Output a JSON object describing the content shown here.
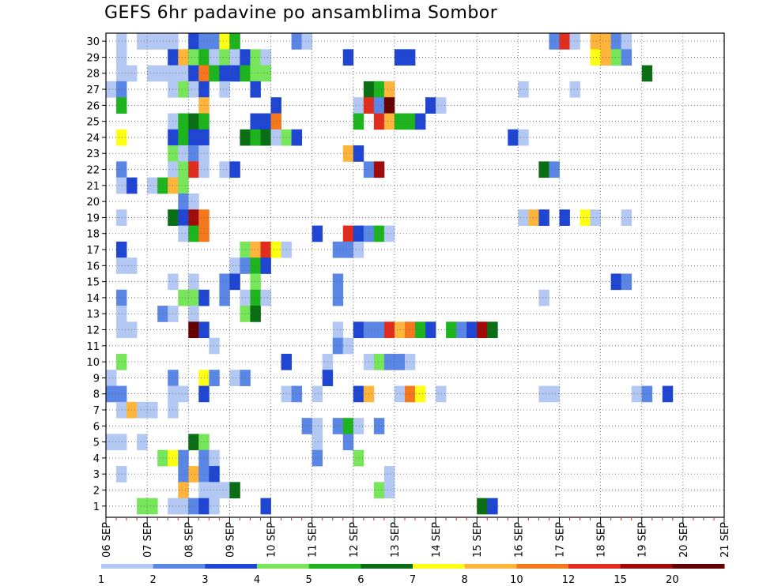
{
  "title": "GEFS 6hr padavine po ansamblima Sombor",
  "chart_data": {
    "type": "heatmap",
    "x_dates": [
      "06 SEP",
      "07 SEP",
      "08 SEP",
      "09 SEP",
      "10 SEP",
      "11 SEP",
      "12 SEP",
      "13 SEP",
      "14 SEP",
      "15 SEP",
      "16 SEP",
      "17 SEP",
      "18 SEP",
      "19 SEP",
      "20 SEP",
      "21 SEP"
    ],
    "x_steps_per_day": 4,
    "members": [
      1,
      2,
      3,
      4,
      5,
      6,
      7,
      8,
      9,
      10,
      11,
      12,
      13,
      14,
      15,
      16,
      17,
      18,
      19,
      20,
      21,
      22,
      23,
      24,
      25,
      26,
      27,
      28,
      29,
      30
    ],
    "grid": true,
    "legend_position": "bottom",
    "colorbar": {
      "tick_labels": [
        "1",
        "2",
        "3",
        "4",
        "5",
        "6",
        "7",
        "8",
        "10",
        "12",
        "15",
        "20"
      ],
      "colors": [
        "#b4c8f4",
        "#5a87e6",
        "#1e46d2",
        "#78e65a",
        "#1eb41e",
        "#0a6e14",
        "#ffff14",
        "#ffb43c",
        "#f5781e",
        "#e12d1e",
        "#a00a0a",
        "#640000"
      ]
    },
    "cells": [
      [
        30,
        1,
        0
      ],
      [
        30,
        3,
        0
      ],
      [
        30,
        4,
        0
      ],
      [
        30,
        5,
        0
      ],
      [
        30,
        6,
        0
      ],
      [
        30,
        8,
        2
      ],
      [
        30,
        9,
        1
      ],
      [
        30,
        10,
        1
      ],
      [
        30,
        11,
        6
      ],
      [
        30,
        12,
        4
      ],
      [
        30,
        18,
        1
      ],
      [
        30,
        19,
        0
      ],
      [
        30,
        43,
        1
      ],
      [
        30,
        44,
        9
      ],
      [
        30,
        45,
        0
      ],
      [
        30,
        47,
        7
      ],
      [
        30,
        48,
        7
      ],
      [
        30,
        49,
        1
      ],
      [
        30,
        50,
        0
      ],
      [
        29,
        1,
        0
      ],
      [
        29,
        6,
        2
      ],
      [
        29,
        7,
        7
      ],
      [
        29,
        8,
        3
      ],
      [
        29,
        9,
        4
      ],
      [
        29,
        10,
        0
      ],
      [
        29,
        11,
        3
      ],
      [
        29,
        12,
        0
      ],
      [
        29,
        13,
        2
      ],
      [
        29,
        14,
        3
      ],
      [
        29,
        15,
        0
      ],
      [
        29,
        23,
        2
      ],
      [
        29,
        28,
        2
      ],
      [
        29,
        29,
        2
      ],
      [
        29,
        47,
        6
      ],
      [
        29,
        48,
        7
      ],
      [
        29,
        49,
        3
      ],
      [
        29,
        50,
        1
      ],
      [
        28,
        1,
        0
      ],
      [
        28,
        2,
        0
      ],
      [
        28,
        4,
        0
      ],
      [
        28,
        5,
        0
      ],
      [
        28,
        6,
        0
      ],
      [
        28,
        7,
        0
      ],
      [
        28,
        8,
        2
      ],
      [
        28,
        9,
        8
      ],
      [
        28,
        10,
        4
      ],
      [
        28,
        11,
        2
      ],
      [
        28,
        12,
        2
      ],
      [
        28,
        13,
        4
      ],
      [
        28,
        14,
        3
      ],
      [
        28,
        15,
        3
      ],
      [
        28,
        52,
        5
      ],
      [
        27,
        0,
        0
      ],
      [
        27,
        1,
        1
      ],
      [
        27,
        6,
        0
      ],
      [
        27,
        7,
        3
      ],
      [
        27,
        8,
        0
      ],
      [
        27,
        9,
        2
      ],
      [
        27,
        11,
        0
      ],
      [
        27,
        14,
        2
      ],
      [
        27,
        25,
        5
      ],
      [
        27,
        26,
        4
      ],
      [
        27,
        27,
        7
      ],
      [
        27,
        40,
        0
      ],
      [
        27,
        45,
        0
      ],
      [
        26,
        1,
        4
      ],
      [
        26,
        9,
        7
      ],
      [
        26,
        16,
        2
      ],
      [
        26,
        24,
        0
      ],
      [
        26,
        25,
        9
      ],
      [
        26,
        26,
        1
      ],
      [
        26,
        27,
        11
      ],
      [
        26,
        31,
        2
      ],
      [
        26,
        32,
        0
      ],
      [
        25,
        6,
        0
      ],
      [
        25,
        7,
        4
      ],
      [
        25,
        8,
        5
      ],
      [
        25,
        9,
        4
      ],
      [
        25,
        14,
        2
      ],
      [
        25,
        15,
        2
      ],
      [
        25,
        16,
        8
      ],
      [
        25,
        24,
        4
      ],
      [
        25,
        26,
        9
      ],
      [
        25,
        27,
        7
      ],
      [
        25,
        28,
        4
      ],
      [
        25,
        29,
        4
      ],
      [
        25,
        30,
        2
      ],
      [
        24,
        1,
        6
      ],
      [
        24,
        6,
        2
      ],
      [
        24,
        7,
        4
      ],
      [
        24,
        8,
        2
      ],
      [
        24,
        9,
        2
      ],
      [
        24,
        13,
        5
      ],
      [
        24,
        14,
        4
      ],
      [
        24,
        15,
        5
      ],
      [
        24,
        16,
        0
      ],
      [
        24,
        17,
        3
      ],
      [
        24,
        18,
        2
      ],
      [
        24,
        39,
        2
      ],
      [
        24,
        40,
        0
      ],
      [
        23,
        6,
        3
      ],
      [
        23,
        7,
        0
      ],
      [
        23,
        8,
        1
      ],
      [
        23,
        9,
        0
      ],
      [
        23,
        23,
        7
      ],
      [
        23,
        24,
        2
      ],
      [
        22,
        1,
        1
      ],
      [
        22,
        6,
        0
      ],
      [
        22,
        7,
        3
      ],
      [
        22,
        8,
        9
      ],
      [
        22,
        9,
        0
      ],
      [
        22,
        11,
        0
      ],
      [
        22,
        12,
        2
      ],
      [
        22,
        25,
        1
      ],
      [
        22,
        26,
        10
      ],
      [
        22,
        42,
        5
      ],
      [
        22,
        43,
        1
      ],
      [
        21,
        1,
        0
      ],
      [
        21,
        2,
        2
      ],
      [
        21,
        4,
        0
      ],
      [
        21,
        5,
        4
      ],
      [
        21,
        6,
        7
      ],
      [
        21,
        7,
        3
      ],
      [
        20,
        7,
        1
      ],
      [
        20,
        8,
        0
      ],
      [
        19,
        1,
        0
      ],
      [
        19,
        6,
        5
      ],
      [
        19,
        7,
        2
      ],
      [
        19,
        8,
        10
      ],
      [
        19,
        9,
        8
      ],
      [
        19,
        40,
        0
      ],
      [
        19,
        41,
        7
      ],
      [
        19,
        42,
        2
      ],
      [
        19,
        44,
        2
      ],
      [
        19,
        46,
        6
      ],
      [
        19,
        47,
        0
      ],
      [
        19,
        50,
        0
      ],
      [
        18,
        7,
        0
      ],
      [
        18,
        8,
        4
      ],
      [
        18,
        9,
        8
      ],
      [
        18,
        20,
        2
      ],
      [
        18,
        23,
        9
      ],
      [
        18,
        24,
        2
      ],
      [
        18,
        25,
        1
      ],
      [
        18,
        26,
        4
      ],
      [
        18,
        27,
        0
      ],
      [
        17,
        1,
        2
      ],
      [
        17,
        13,
        3
      ],
      [
        17,
        14,
        7
      ],
      [
        17,
        15,
        9
      ],
      [
        17,
        16,
        6
      ],
      [
        17,
        17,
        0
      ],
      [
        17,
        22,
        1
      ],
      [
        17,
        23,
        1
      ],
      [
        17,
        24,
        0
      ],
      [
        16,
        1,
        0
      ],
      [
        16,
        2,
        0
      ],
      [
        16,
        12,
        0
      ],
      [
        16,
        13,
        1
      ],
      [
        16,
        14,
        4
      ],
      [
        16,
        15,
        2
      ],
      [
        15,
        6,
        0
      ],
      [
        15,
        8,
        0
      ],
      [
        15,
        11,
        1
      ],
      [
        15,
        12,
        2
      ],
      [
        15,
        14,
        3
      ],
      [
        15,
        22,
        1
      ],
      [
        15,
        49,
        2
      ],
      [
        15,
        50,
        1
      ],
      [
        14,
        1,
        1
      ],
      [
        14,
        7,
        3
      ],
      [
        14,
        8,
        3
      ],
      [
        14,
        9,
        2
      ],
      [
        14,
        11,
        1
      ],
      [
        14,
        13,
        0
      ],
      [
        14,
        14,
        4
      ],
      [
        14,
        15,
        0
      ],
      [
        14,
        22,
        1
      ],
      [
        14,
        42,
        0
      ],
      [
        13,
        1,
        0
      ],
      [
        13,
        5,
        1
      ],
      [
        13,
        6,
        0
      ],
      [
        13,
        8,
        0
      ],
      [
        13,
        13,
        3
      ],
      [
        13,
        14,
        5
      ],
      [
        12,
        1,
        0
      ],
      [
        12,
        2,
        0
      ],
      [
        12,
        8,
        11
      ],
      [
        12,
        9,
        2
      ],
      [
        12,
        22,
        0
      ],
      [
        12,
        24,
        2
      ],
      [
        12,
        25,
        1
      ],
      [
        12,
        26,
        1
      ],
      [
        12,
        27,
        9
      ],
      [
        12,
        28,
        7
      ],
      [
        12,
        29,
        8
      ],
      [
        12,
        30,
        4
      ],
      [
        12,
        31,
        2
      ],
      [
        12,
        33,
        4
      ],
      [
        12,
        34,
        1
      ],
      [
        12,
        35,
        2
      ],
      [
        12,
        36,
        10
      ],
      [
        12,
        37,
        5
      ],
      [
        11,
        10,
        0
      ],
      [
        11,
        22,
        1
      ],
      [
        11,
        23,
        0
      ],
      [
        10,
        1,
        3
      ],
      [
        10,
        17,
        2
      ],
      [
        10,
        21,
        0
      ],
      [
        10,
        25,
        0
      ],
      [
        10,
        26,
        3
      ],
      [
        10,
        27,
        1
      ],
      [
        10,
        28,
        1
      ],
      [
        10,
        29,
        0
      ],
      [
        9,
        0,
        0
      ],
      [
        9,
        6,
        1
      ],
      [
        9,
        9,
        6
      ],
      [
        9,
        10,
        1
      ],
      [
        9,
        12,
        0
      ],
      [
        9,
        13,
        1
      ],
      [
        9,
        21,
        2
      ],
      [
        8,
        0,
        1
      ],
      [
        8,
        1,
        1
      ],
      [
        8,
        6,
        0
      ],
      [
        8,
        7,
        0
      ],
      [
        8,
        9,
        2
      ],
      [
        8,
        17,
        0
      ],
      [
        8,
        18,
        1
      ],
      [
        8,
        20,
        0
      ],
      [
        8,
        24,
        2
      ],
      [
        8,
        25,
        7
      ],
      [
        8,
        28,
        0
      ],
      [
        8,
        29,
        8
      ],
      [
        8,
        30,
        6
      ],
      [
        8,
        32,
        0
      ],
      [
        8,
        42,
        0
      ],
      [
        8,
        43,
        0
      ],
      [
        8,
        51,
        0
      ],
      [
        8,
        52,
        1
      ],
      [
        8,
        54,
        2
      ],
      [
        7,
        1,
        0
      ],
      [
        7,
        2,
        7
      ],
      [
        7,
        3,
        0
      ],
      [
        7,
        4,
        0
      ],
      [
        7,
        6,
        0
      ],
      [
        6,
        19,
        1
      ],
      [
        6,
        20,
        0
      ],
      [
        6,
        22,
        1
      ],
      [
        6,
        23,
        4
      ],
      [
        6,
        24,
        0
      ],
      [
        6,
        26,
        1
      ],
      [
        5,
        0,
        0
      ],
      [
        5,
        1,
        0
      ],
      [
        5,
        3,
        0
      ],
      [
        5,
        8,
        5
      ],
      [
        5,
        9,
        3
      ],
      [
        5,
        20,
        0
      ],
      [
        5,
        23,
        1
      ],
      [
        4,
        5,
        3
      ],
      [
        4,
        6,
        6
      ],
      [
        4,
        7,
        1
      ],
      [
        4,
        9,
        1
      ],
      [
        4,
        10,
        0
      ],
      [
        4,
        20,
        1
      ],
      [
        4,
        24,
        3
      ],
      [
        3,
        1,
        0
      ],
      [
        3,
        7,
        1
      ],
      [
        3,
        8,
        7
      ],
      [
        3,
        9,
        1
      ],
      [
        3,
        10,
        2
      ],
      [
        3,
        27,
        0
      ],
      [
        2,
        7,
        7
      ],
      [
        2,
        9,
        0
      ],
      [
        2,
        10,
        0
      ],
      [
        2,
        11,
        0
      ],
      [
        2,
        12,
        5
      ],
      [
        2,
        26,
        3
      ],
      [
        2,
        27,
        0
      ],
      [
        1,
        3,
        3
      ],
      [
        1,
        4,
        3
      ],
      [
        1,
        6,
        0
      ],
      [
        1,
        7,
        0
      ],
      [
        1,
        8,
        1
      ],
      [
        1,
        9,
        2
      ],
      [
        1,
        10,
        0
      ],
      [
        1,
        15,
        2
      ],
      [
        1,
        36,
        5
      ],
      [
        1,
        37,
        2
      ]
    ]
  }
}
